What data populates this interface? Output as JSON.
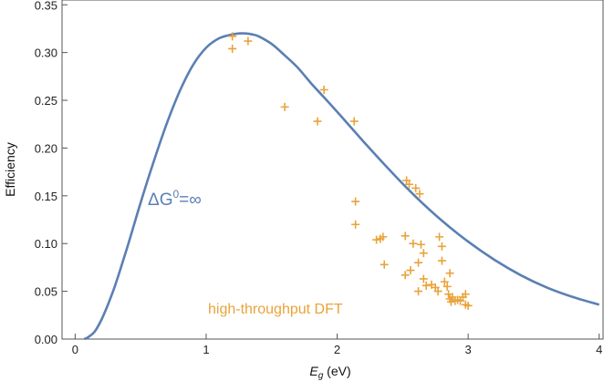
{
  "chart_data": {
    "type": "line",
    "xlabel": "E_g (eV)",
    "xlabel_main": "E",
    "xlabel_sub": "g",
    "xlabel_unit": " (eV)",
    "ylabel": "Efficiency",
    "xlim": [
      -0.1,
      4.03
    ],
    "ylim": [
      0,
      0.355
    ],
    "x_ticks": [
      {
        "value": 0,
        "label": "0"
      },
      {
        "value": 1,
        "label": "1"
      },
      {
        "value": 2,
        "label": "2"
      },
      {
        "value": 3,
        "label": "3"
      },
      {
        "value": 4,
        "label": "4"
      }
    ],
    "y_ticks": [
      {
        "value": 0.0,
        "label": "0.00"
      },
      {
        "value": 0.05,
        "label": "0.05"
      },
      {
        "value": 0.1,
        "label": "0.10"
      },
      {
        "value": 0.15,
        "label": "0.15"
      },
      {
        "value": 0.2,
        "label": "0.20"
      },
      {
        "value": 0.25,
        "label": "0.25"
      },
      {
        "value": 0.3,
        "label": "0.30"
      },
      {
        "value": 0.35,
        "label": "0.35"
      }
    ],
    "grid": false,
    "series": [
      {
        "name": "ΔG0=∞",
        "kind": "line",
        "color": "#5b7fb3",
        "x": [
          0.07,
          0.1,
          0.15,
          0.2,
          0.25,
          0.3,
          0.35,
          0.4,
          0.45,
          0.5,
          0.6,
          0.7,
          0.8,
          0.9,
          1.0,
          1.1,
          1.2,
          1.25,
          1.3,
          1.35,
          1.4,
          1.5,
          1.6,
          1.7,
          1.8,
          1.9,
          2.0,
          2.2,
          2.4,
          2.6,
          2.8,
          3.0,
          3.2,
          3.4,
          3.6,
          3.8,
          4.0
        ],
        "y": [
          0.0,
          0.002,
          0.008,
          0.02,
          0.036,
          0.054,
          0.075,
          0.097,
          0.12,
          0.143,
          0.186,
          0.226,
          0.26,
          0.287,
          0.305,
          0.315,
          0.319,
          0.32,
          0.32,
          0.319,
          0.317,
          0.309,
          0.297,
          0.284,
          0.268,
          0.253,
          0.238,
          0.207,
          0.177,
          0.149,
          0.124,
          0.102,
          0.083,
          0.067,
          0.054,
          0.044,
          0.036
        ]
      },
      {
        "name": "high-throughput DFT",
        "kind": "scatter",
        "marker": "+",
        "color": "#e9a33a",
        "points": [
          [
            1.2,
            0.317
          ],
          [
            1.2,
            0.304
          ],
          [
            1.32,
            0.312
          ],
          [
            1.6,
            0.243
          ],
          [
            1.85,
            0.228
          ],
          [
            1.9,
            0.261
          ],
          [
            2.13,
            0.228
          ],
          [
            2.14,
            0.144
          ],
          [
            2.14,
            0.12
          ],
          [
            2.3,
            0.104
          ],
          [
            2.33,
            0.105
          ],
          [
            2.35,
            0.107
          ],
          [
            2.36,
            0.078
          ],
          [
            2.53,
            0.166
          ],
          [
            2.55,
            0.162
          ],
          [
            2.6,
            0.158
          ],
          [
            2.63,
            0.152
          ],
          [
            2.52,
            0.108
          ],
          [
            2.58,
            0.1
          ],
          [
            2.52,
            0.067
          ],
          [
            2.56,
            0.072
          ],
          [
            2.62,
            0.08
          ],
          [
            2.64,
            0.099
          ],
          [
            2.66,
            0.09
          ],
          [
            2.66,
            0.063
          ],
          [
            2.68,
            0.056
          ],
          [
            2.62,
            0.05
          ],
          [
            2.72,
            0.057
          ],
          [
            2.75,
            0.054
          ],
          [
            2.77,
            0.05
          ],
          [
            2.78,
            0.107
          ],
          [
            2.8,
            0.097
          ],
          [
            2.8,
            0.082
          ],
          [
            2.82,
            0.06
          ],
          [
            2.84,
            0.055
          ],
          [
            2.86,
            0.069
          ],
          [
            2.85,
            0.047
          ],
          [
            2.88,
            0.044
          ],
          [
            2.87,
            0.039
          ],
          [
            2.9,
            0.04
          ],
          [
            2.86,
            0.042
          ],
          [
            2.92,
            0.041
          ],
          [
            2.94,
            0.04
          ],
          [
            2.96,
            0.044
          ],
          [
            2.98,
            0.047
          ],
          [
            2.98,
            0.036
          ],
          [
            3.0,
            0.035
          ]
        ]
      }
    ],
    "annotations": [
      {
        "key": "curve",
        "delta": "ΔG",
        "sup": "0",
        "rest": "=∞",
        "color": "#5b7fb3"
      },
      {
        "key": "dft",
        "text": "high-throughput DFT",
        "color": "#e9a33a"
      }
    ]
  }
}
